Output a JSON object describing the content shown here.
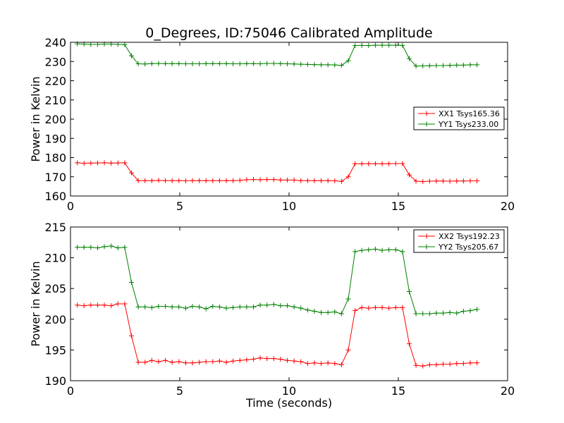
{
  "figure": {
    "title": "0_Degrees, ID:75046 Calibrated Amplitude"
  },
  "chart_data": [
    {
      "type": "line",
      "title": "0_Degrees, ID:75046 Calibrated Amplitude",
      "xlabel": "",
      "ylabel": "Power in Kelvin",
      "xlim": [
        0,
        20
      ],
      "ylim": [
        160,
        240
      ],
      "xticks": [
        "0",
        "5",
        "10",
        "15",
        "20"
      ],
      "yticks": [
        "160",
        "170",
        "180",
        "190",
        "200",
        "210",
        "220",
        "230",
        "240"
      ],
      "grid": false,
      "legend_position": "center-right",
      "x": [
        0.31,
        0.62,
        0.93,
        1.24,
        1.55,
        1.86,
        2.17,
        2.48,
        2.79,
        3.1,
        3.41,
        3.72,
        4.03,
        4.34,
        4.65,
        4.96,
        5.27,
        5.58,
        5.89,
        6.2,
        6.51,
        6.82,
        7.13,
        7.44,
        7.75,
        8.06,
        8.37,
        8.68,
        8.99,
        9.3,
        9.61,
        9.92,
        10.23,
        10.54,
        10.85,
        11.16,
        11.47,
        11.78,
        12.09,
        12.4,
        12.71,
        13.02,
        13.33,
        13.64,
        13.95,
        14.26,
        14.57,
        14.88,
        15.19,
        15.5,
        15.81,
        16.12,
        16.43,
        16.74,
        17.05,
        17.36,
        17.67,
        17.98,
        18.29,
        18.6
      ],
      "series": [
        {
          "name": "XX1 Tsys165.36",
          "color": "#ff0000",
          "values": [
            177.3,
            177.0,
            177.1,
            177.2,
            177.3,
            177.1,
            177.2,
            177.3,
            172.0,
            168.0,
            168.0,
            168.0,
            168.1,
            168.0,
            168.0,
            168.0,
            167.9,
            168.0,
            168.0,
            168.0,
            168.0,
            168.0,
            168.0,
            168.0,
            168.1,
            168.5,
            168.6,
            168.5,
            168.6,
            168.6,
            168.3,
            168.3,
            168.3,
            168.0,
            168.0,
            168.0,
            168.0,
            168.0,
            167.9,
            167.6,
            170.0,
            176.8,
            176.8,
            176.8,
            176.8,
            176.8,
            176.8,
            176.9,
            176.9,
            171.0,
            167.7,
            167.5,
            167.7,
            167.8,
            167.8,
            167.7,
            167.8,
            167.8,
            167.9,
            167.9
          ]
        },
        {
          "name": "YY1 Tsys233.00",
          "color": "#008000",
          "values": [
            239.2,
            239.1,
            238.9,
            238.9,
            239.1,
            239.1,
            238.9,
            238.8,
            233.0,
            228.8,
            228.7,
            228.9,
            229.0,
            228.9,
            228.9,
            228.9,
            228.8,
            228.8,
            228.8,
            228.9,
            228.9,
            228.9,
            228.9,
            228.8,
            228.8,
            228.9,
            228.9,
            228.8,
            229.0,
            229.0,
            228.9,
            228.8,
            228.7,
            228.6,
            228.5,
            228.4,
            228.3,
            228.3,
            228.2,
            228.0,
            230.4,
            238.3,
            238.4,
            238.3,
            238.5,
            238.5,
            238.5,
            238.5,
            238.4,
            231.5,
            227.6,
            227.7,
            227.8,
            227.9,
            227.9,
            228.0,
            228.1,
            228.1,
            228.3,
            228.3
          ]
        }
      ]
    },
    {
      "type": "line",
      "title": "",
      "xlabel": "Time (seconds)",
      "ylabel": "Power in Kelvin",
      "xlim": [
        0,
        20
      ],
      "ylim": [
        190,
        215
      ],
      "xticks": [
        "0",
        "5",
        "10",
        "15",
        "20"
      ],
      "yticks": [
        "190",
        "195",
        "200",
        "205",
        "210",
        "215"
      ],
      "grid": false,
      "legend_position": "top-right",
      "x": [
        0.31,
        0.62,
        0.93,
        1.24,
        1.55,
        1.86,
        2.17,
        2.48,
        2.79,
        3.1,
        3.41,
        3.72,
        4.03,
        4.34,
        4.65,
        4.96,
        5.27,
        5.58,
        5.89,
        6.2,
        6.51,
        6.82,
        7.13,
        7.44,
        7.75,
        8.06,
        8.37,
        8.68,
        8.99,
        9.3,
        9.61,
        9.92,
        10.23,
        10.54,
        10.85,
        11.16,
        11.47,
        11.78,
        12.09,
        12.4,
        12.71,
        13.02,
        13.33,
        13.64,
        13.95,
        14.26,
        14.57,
        14.88,
        15.19,
        15.5,
        15.81,
        16.12,
        16.43,
        16.74,
        17.05,
        17.36,
        17.67,
        17.98,
        18.29,
        18.6
      ],
      "series": [
        {
          "name": "XX2 Tsys192.23",
          "color": "#ff0000",
          "values": [
            202.3,
            202.2,
            202.3,
            202.3,
            202.3,
            202.2,
            202.5,
            202.5,
            197.3,
            193.0,
            193.0,
            193.3,
            193.1,
            193.3,
            193.0,
            193.1,
            192.9,
            192.9,
            193.0,
            193.1,
            193.1,
            193.2,
            193.0,
            193.2,
            193.3,
            193.4,
            193.5,
            193.7,
            193.6,
            193.6,
            193.5,
            193.3,
            193.2,
            193.1,
            192.8,
            192.9,
            192.8,
            192.9,
            192.8,
            192.6,
            195.0,
            201.4,
            201.9,
            201.8,
            201.9,
            201.9,
            201.8,
            201.9,
            201.9,
            196.0,
            192.5,
            192.4,
            192.6,
            192.6,
            192.7,
            192.7,
            192.8,
            192.8,
            192.9,
            192.9
          ]
        },
        {
          "name": "YY2 Tsys205.67",
          "color": "#008000",
          "values": [
            211.7,
            211.7,
            211.7,
            211.6,
            211.8,
            211.9,
            211.6,
            211.7,
            206.0,
            202.0,
            202.0,
            201.9,
            202.1,
            202.1,
            202.0,
            202.0,
            201.8,
            202.1,
            202.0,
            201.7,
            202.1,
            202.0,
            201.8,
            201.9,
            202.0,
            202.0,
            202.0,
            202.3,
            202.3,
            202.4,
            202.2,
            202.2,
            202.0,
            201.8,
            201.5,
            201.3,
            201.1,
            201.1,
            201.2,
            200.9,
            203.3,
            211.0,
            211.2,
            211.3,
            211.4,
            211.2,
            211.3,
            211.3,
            211.0,
            204.5,
            200.9,
            200.9,
            200.9,
            201.0,
            201.0,
            201.1,
            201.0,
            201.3,
            201.4,
            201.6
          ]
        }
      ]
    }
  ]
}
